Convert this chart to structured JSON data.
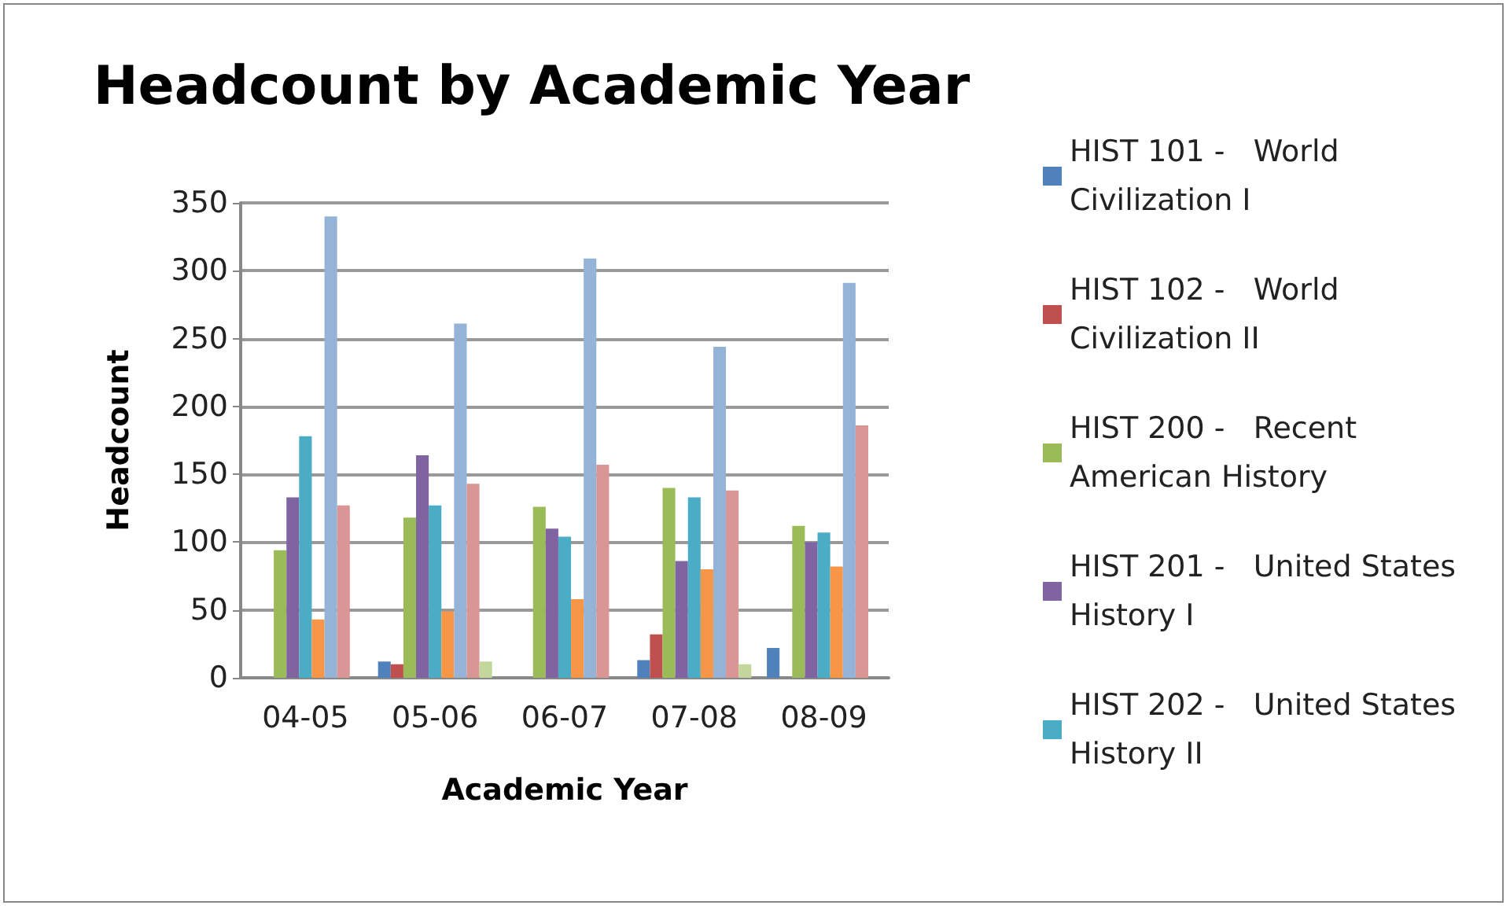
{
  "chart_data": {
    "type": "bar",
    "title": "Headcount by Academic Year",
    "xlabel": "Academic Year",
    "ylabel": "Headcount",
    "categories": [
      "04-05",
      "05-06",
      "06-07",
      "07-08",
      "08-09"
    ],
    "series": [
      {
        "name": "HIST 101 -   World Civilization I",
        "color": "#4f81bd",
        "values": [
          0,
          12,
          0,
          13,
          22
        ]
      },
      {
        "name": "HIST 102 -   World Civilization II",
        "color": "#c0504d",
        "values": [
          0,
          10,
          0,
          32,
          0
        ]
      },
      {
        "name": "HIST 200 -   Recent American History",
        "color": "#9bbb59",
        "values": [
          94,
          118,
          126,
          140,
          112
        ]
      },
      {
        "name": "HIST 201 -   United States History I",
        "color": "#8064a2",
        "values": [
          133,
          164,
          110,
          86,
          100
        ]
      },
      {
        "name": "HIST 202 -   United States History II",
        "color": "#4bacc6",
        "values": [
          178,
          127,
          104,
          133,
          107
        ]
      },
      {
        "color": "#f79646",
        "values": [
          43,
          49,
          58,
          80,
          82
        ]
      },
      {
        "color": "#95b3d7",
        "values": [
          340,
          261,
          309,
          244,
          291
        ]
      },
      {
        "color": "#d99694",
        "values": [
          127,
          143,
          157,
          138,
          186
        ]
      },
      {
        "color": "#c3d69b",
        "values": [
          0,
          12,
          0,
          10,
          0
        ]
      }
    ],
    "ylim": [
      0,
      350
    ],
    "yticks": [
      0,
      50,
      100,
      150,
      200,
      250,
      300,
      350
    ],
    "grid": "y",
    "legend": "right"
  }
}
